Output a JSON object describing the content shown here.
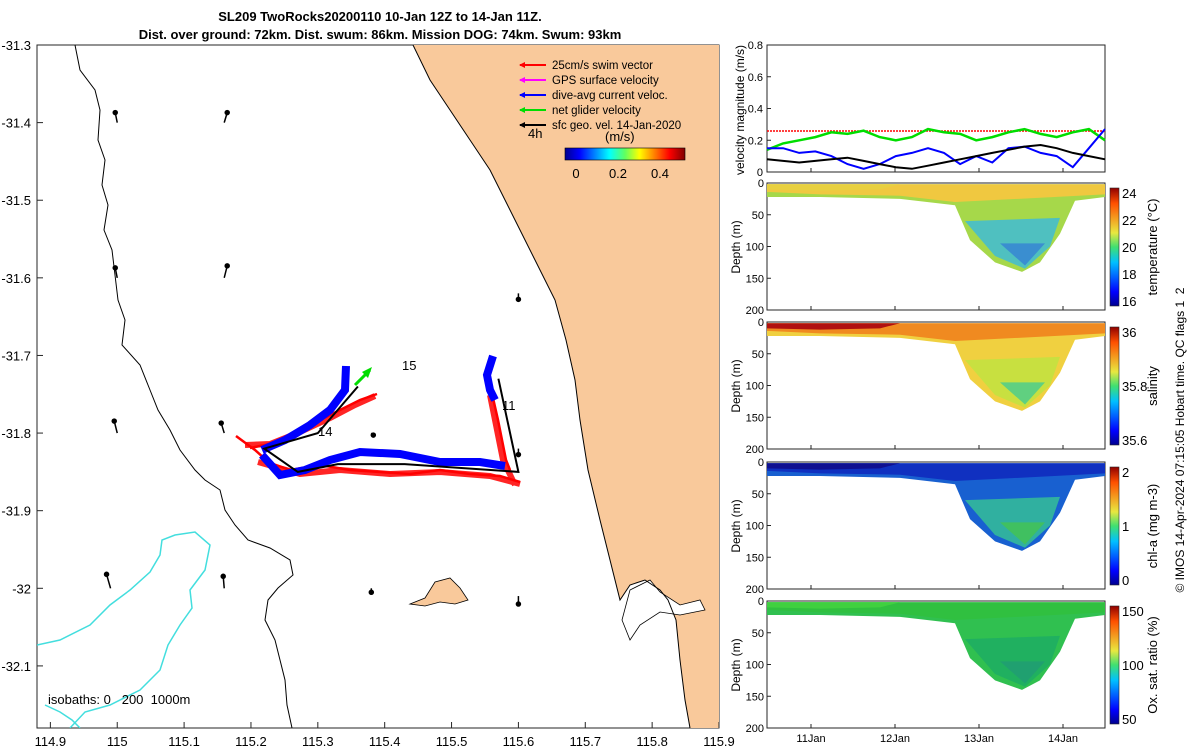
{
  "title": {
    "line1": "SL209 TwoRocks20200110 10-Jan 12Z to 14-Jan 11Z.",
    "line2": "Dist. over ground: 72km. Dist. swum: 86km. Mission DOG: 74km. Swum: 93km"
  },
  "map": {
    "x_ticks": [
      "114.9",
      "115",
      "115.1",
      "115.2",
      "115.3",
      "115.4",
      "115.5",
      "115.6",
      "115.7",
      "115.8",
      "115.9"
    ],
    "y_ticks": [
      "-31.3",
      "-31.4",
      "-31.5",
      "-31.6",
      "-31.7",
      "-31.8",
      "-31.9",
      "-32",
      "-32.1"
    ],
    "legend": [
      {
        "label": "25cm/s swim vector",
        "color": "#ff0000"
      },
      {
        "label": "GPS surface velocity",
        "color": "#ff00ff"
      },
      {
        "label": "dive-avg current veloc.",
        "color": "#0000ff"
      },
      {
        "label": "net glider velocity",
        "color": "#00dd00"
      },
      {
        "label": "sfc geo. vel. 14-Jan-2020",
        "color": "#000000"
      }
    ],
    "scale_label": "4h",
    "colorbar_unit": "(m/s)",
    "colorbar_ticks": [
      "0",
      "0.2",
      "0.4"
    ],
    "day_labels": [
      "15",
      "11",
      "14"
    ],
    "isobaths_label": "isobaths: 0   200  1000m",
    "colors": {
      "land": "#f9c99b",
      "isobath_200": "#43dede",
      "coast": "#000000"
    }
  },
  "panels": {
    "velocity": {
      "ylabel": "velocity magnitude (m/s)",
      "y_ticks": [
        "0",
        "0.2",
        "0.4",
        "0.6",
        "0.8"
      ],
      "ylim": [
        0,
        0.8
      ]
    },
    "temperature": {
      "ylabel": "Depth (m)",
      "y_ticks": [
        "0",
        "50",
        "100",
        "150",
        "200"
      ],
      "cb_label": "temperature (°C)",
      "cb_ticks": [
        "24",
        "22",
        "20",
        "18",
        "16"
      ]
    },
    "salinity": {
      "ylabel": "Depth (m)",
      "y_ticks": [
        "0",
        "50",
        "100",
        "150",
        "200"
      ],
      "cb_label": "salinity",
      "cb_ticks": [
        "36",
        "35.8",
        "35.6"
      ]
    },
    "chla": {
      "ylabel": "Depth (m)",
      "y_ticks": [
        "0",
        "50",
        "100",
        "150",
        "200"
      ],
      "cb_label": "chl-a (mg m-3)",
      "cb_ticks": [
        "2",
        "1",
        "0"
      ]
    },
    "oxygen": {
      "ylabel": "Depth (m)",
      "y_ticks": [
        "0",
        "50",
        "100",
        "150",
        "200"
      ],
      "cb_label": "Ox. sat. ratio (%)",
      "cb_ticks": [
        "150",
        "100",
        "50"
      ]
    },
    "x_ticks": [
      "11Jan",
      "12Jan",
      "13Jan",
      "14Jan"
    ]
  },
  "footer": "© IMOS 14-Apr-2024 07:15:05 Hobart time. QC flags 1  2",
  "chart_data": [
    {
      "type": "scatter",
      "xlabel": "",
      "ylabel": "",
      "xlim": [
        114.88,
        115.9
      ],
      "ylim": [
        -32.18,
        -31.3
      ],
      "track_lon": [
        115.36,
        115.3,
        115.22,
        115.27,
        115.33,
        115.43,
        115.6,
        115.57
      ],
      "track_lat": [
        -31.74,
        -31.8,
        -31.82,
        -31.85,
        -31.84,
        -31.84,
        -31.85,
        -31.73
      ]
    },
    {
      "type": "line",
      "title": "",
      "x_ticks": [
        "11Jan",
        "12Jan",
        "13Jan",
        "14Jan"
      ],
      "ylim": [
        0,
        0.8
      ],
      "series": [
        {
          "color": "#00dd00",
          "values": [
            0.14,
            0.18,
            0.2,
            0.22,
            0.25,
            0.24,
            0.26,
            0.22,
            0.2,
            0.22,
            0.27,
            0.25,
            0.24,
            0.2,
            0.22,
            0.25,
            0.27,
            0.24,
            0.22,
            0.25,
            0.27,
            0.2
          ]
        },
        {
          "color": "#0000ff",
          "values": [
            0.15,
            0.15,
            0.12,
            0.13,
            0.1,
            0.05,
            0.02,
            0.05,
            0.1,
            0.12,
            0.15,
            0.12,
            0.05,
            0.1,
            0.06,
            0.15,
            0.16,
            0.12,
            0.1,
            0.03,
            0.15,
            0.27
          ]
        },
        {
          "color": "#000000",
          "values": [
            0.08,
            0.07,
            0.06,
            0.07,
            0.08,
            0.09,
            0.07,
            0.05,
            0.03,
            0.02,
            0.04,
            0.06,
            0.08,
            0.1,
            0.12,
            0.14,
            0.16,
            0.17,
            0.15,
            0.12,
            0.1,
            0.08
          ]
        }
      ]
    }
  ]
}
